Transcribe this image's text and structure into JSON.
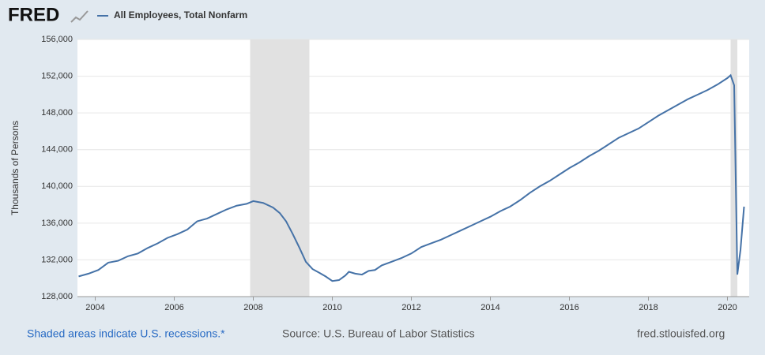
{
  "header": {
    "logo": "FRED"
  },
  "chart_data": {
    "type": "line",
    "y_label": "Thousands of Persons",
    "x": [
      2003.58,
      2003.83,
      2004.08,
      2004.33,
      2004.58,
      2004.83,
      2005.08,
      2005.33,
      2005.58,
      2005.83,
      2006.08,
      2006.33,
      2006.58,
      2006.83,
      2007.08,
      2007.33,
      2007.58,
      2007.83,
      2008.0,
      2008.25,
      2008.5,
      2008.67,
      2008.83,
      2009.0,
      2009.17,
      2009.33,
      2009.5,
      2009.67,
      2009.83,
      2010.0,
      2010.17,
      2010.33,
      2010.42,
      2010.58,
      2010.75,
      2010.92,
      2011.08,
      2011.25,
      2011.5,
      2011.75,
      2012.0,
      2012.25,
      2012.5,
      2012.75,
      2013.0,
      2013.25,
      2013.5,
      2013.75,
      2014.0,
      2014.25,
      2014.5,
      2014.75,
      2015.0,
      2015.25,
      2015.5,
      2015.75,
      2016.0,
      2016.25,
      2016.5,
      2016.75,
      2017.0,
      2017.25,
      2017.5,
      2017.75,
      2018.0,
      2018.25,
      2018.5,
      2018.75,
      2019.0,
      2019.25,
      2019.5,
      2019.75,
      2020.0,
      2020.08,
      2020.17,
      2020.25,
      2020.33,
      2020.42
    ],
    "series": [
      {
        "name": "All Employees, Total Nonfarm",
        "color": "#4572a7",
        "values": [
          130200,
          130500,
          130900,
          131700,
          131900,
          132400,
          132700,
          133300,
          133800,
          134400,
          134800,
          135300,
          136200,
          136500,
          137000,
          137500,
          137900,
          138100,
          138400,
          138200,
          137700,
          137100,
          136200,
          134800,
          133300,
          131800,
          131000,
          130600,
          130200,
          129700,
          129800,
          130300,
          130700,
          130500,
          130400,
          130800,
          130900,
          131400,
          131800,
          132200,
          132700,
          133400,
          133800,
          134200,
          134700,
          135200,
          135700,
          136200,
          136700,
          137300,
          137800,
          138500,
          139300,
          140000,
          140600,
          141300,
          142000,
          142600,
          143300,
          143900,
          144600,
          145300,
          145800,
          146300,
          147000,
          147700,
          148300,
          148900,
          149500,
          150000,
          150500,
          151100,
          151800,
          152100,
          151000,
          130400,
          133100,
          137800
        ]
      }
    ],
    "recession_starts": [
      2007.92,
      2020.08
    ],
    "recession_ends": [
      2009.42,
      2020.25
    ],
    "xlim": [
      2003.55,
      2020.55
    ],
    "xticks": [
      2004,
      2006,
      2008,
      2010,
      2012,
      2014,
      2016,
      2018,
      2020
    ],
    "ylim": [
      128000,
      156000
    ],
    "yticks": [
      {
        "value": 128000,
        "label": "128,000"
      },
      {
        "value": 132000,
        "label": "132,000"
      },
      {
        "value": 136000,
        "label": "136,000"
      },
      {
        "value": 140000,
        "label": "140,000"
      },
      {
        "value": 144000,
        "label": "144,000"
      },
      {
        "value": 148000,
        "label": "148,000"
      },
      {
        "value": 152000,
        "label": "152,000"
      },
      {
        "value": 156000,
        "label": "156,000"
      }
    ],
    "grid": true
  },
  "footer": {
    "note": "Shaded areas indicate U.S. recessions.*",
    "source": "Source: U.S. Bureau of Labor Statistics",
    "site": "fred.stlouisfed.org"
  }
}
